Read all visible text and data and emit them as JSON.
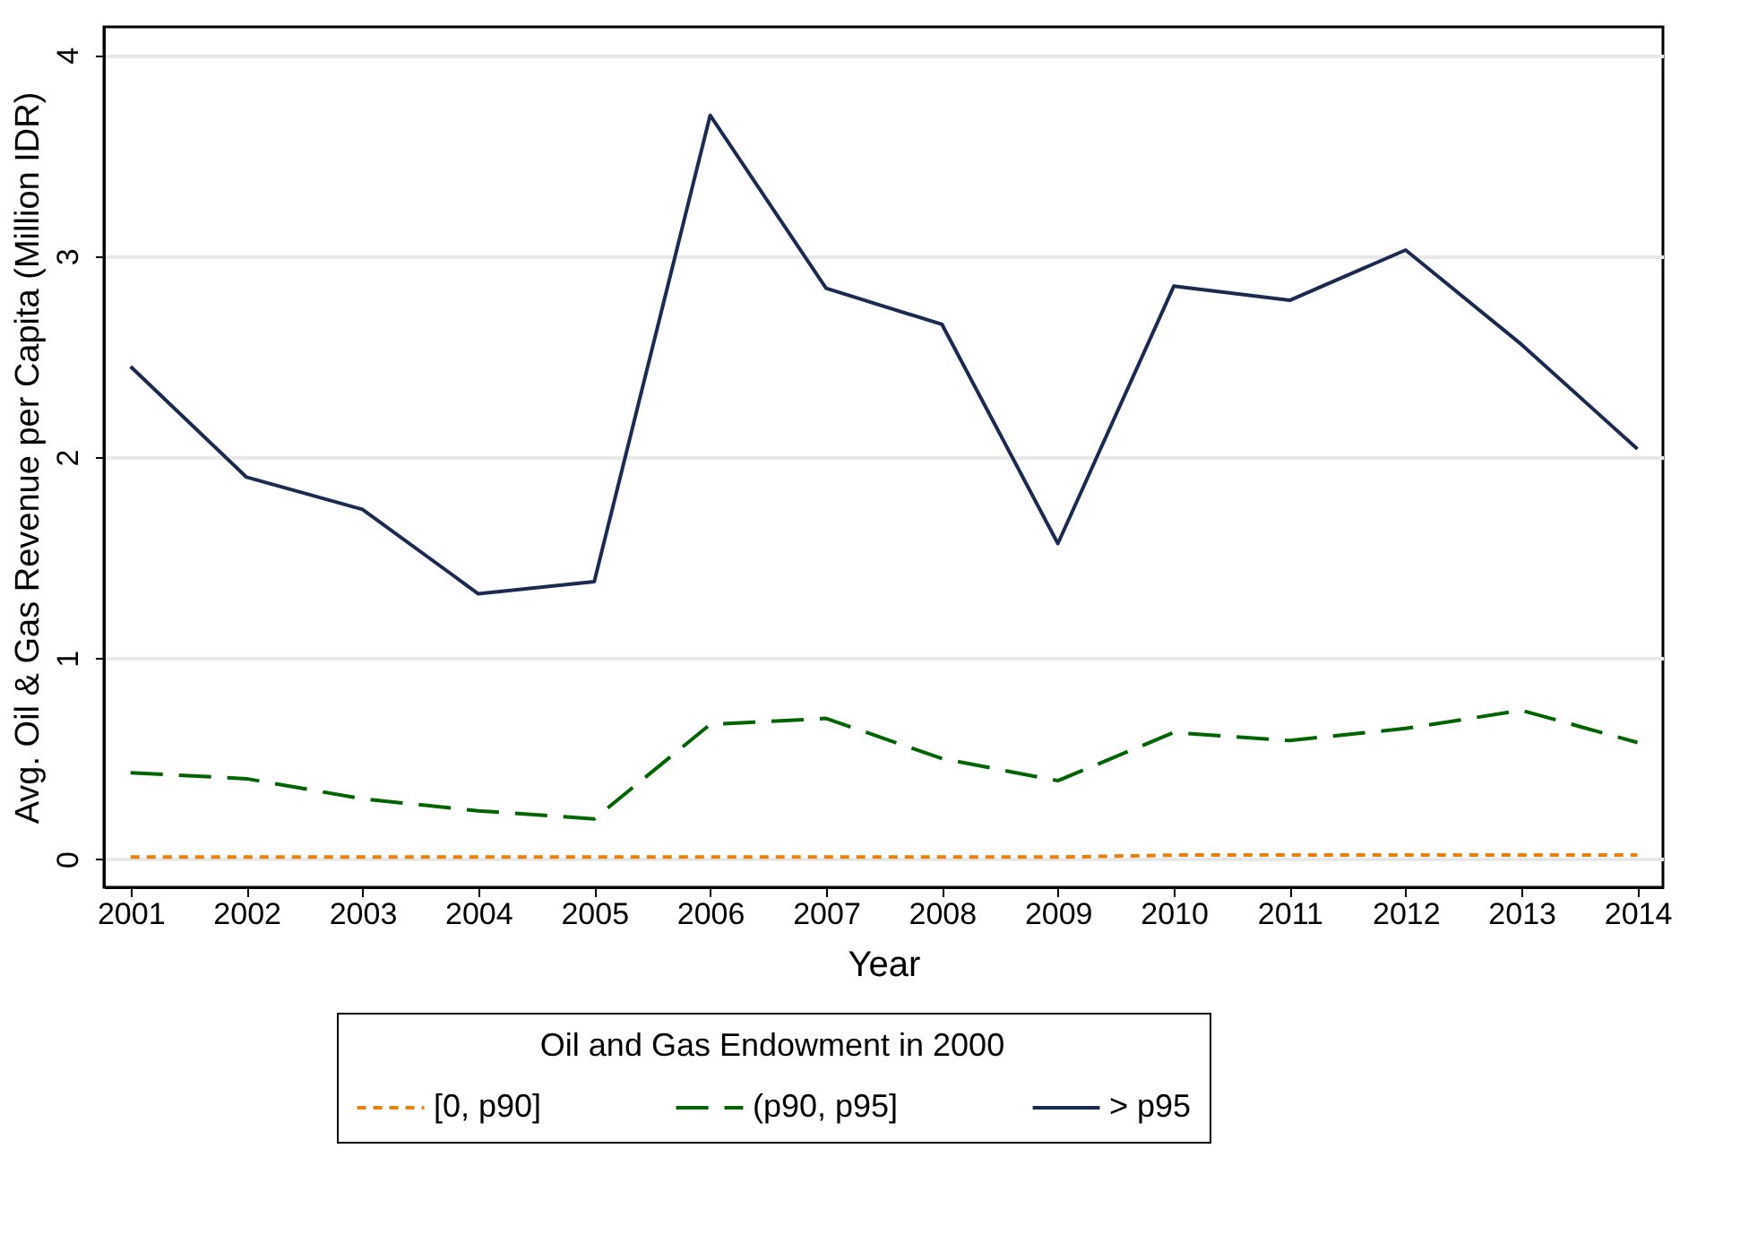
{
  "chart_data": {
    "type": "line",
    "xlabel": "Year",
    "ylabel": "Avg. Oil & Gas Revenue per Capita (Million IDR)",
    "legend_title": "Oil and Gas Endowment in 2000",
    "x": [
      2001,
      2002,
      2003,
      2004,
      2005,
      2006,
      2007,
      2008,
      2009,
      2010,
      2011,
      2012,
      2013,
      2014
    ],
    "series": [
      {
        "name": "[0, p90]",
        "color": "#e8800e",
        "line_style": "dotted",
        "values": [
          0.01,
          0.01,
          0.01,
          0.01,
          0.01,
          0.01,
          0.01,
          0.01,
          0.01,
          0.02,
          0.02,
          0.02,
          0.02,
          0.02
        ]
      },
      {
        "name": "(p90, p95]",
        "color": "#006400",
        "line_style": "dashed",
        "values": [
          0.43,
          0.4,
          0.3,
          0.24,
          0.2,
          0.67,
          0.7,
          0.5,
          0.39,
          0.63,
          0.59,
          0.65,
          0.74,
          0.58
        ]
      },
      {
        "name": "> p95",
        "color": "#1a2a50",
        "line_style": "solid",
        "values": [
          2.45,
          1.9,
          1.74,
          1.32,
          1.38,
          3.7,
          2.84,
          2.66,
          1.57,
          2.85,
          2.78,
          3.03,
          2.56,
          2.04
        ]
      }
    ],
    "xlim": [
      2000.77,
      2014.22
    ],
    "xticks": [
      2001,
      2002,
      2003,
      2004,
      2005,
      2006,
      2007,
      2008,
      2009,
      2010,
      2011,
      2012,
      2013,
      2014
    ],
    "ylim": [
      -0.14,
      4.14
    ],
    "yticks": [
      0,
      1,
      2,
      3,
      4
    ],
    "grid": "y",
    "legend": "bottom",
    "marker": "none"
  }
}
